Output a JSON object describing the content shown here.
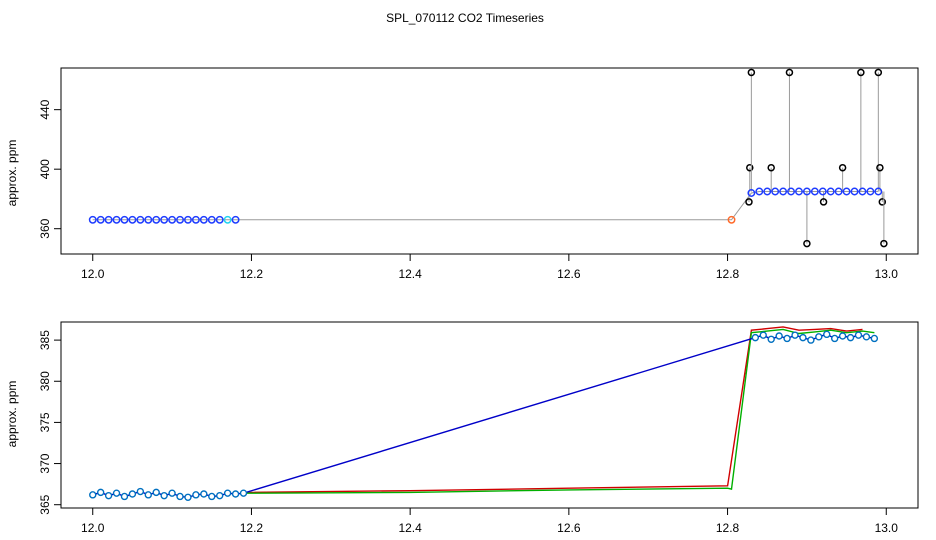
{
  "title": "SPL_070112  CO2 Timeseries",
  "chart_data": [
    {
      "type": "line",
      "panel": "top",
      "title": "",
      "xlabel": "",
      "ylabel": "approx. ppm",
      "xlim": [
        11.96,
        13.04
      ],
      "ylim": [
        343,
        468
      ],
      "x_ticks": [
        "12.0",
        "12.2",
        "12.4",
        "12.6",
        "12.8",
        "13.0"
      ],
      "y_ticks": [
        "360",
        "400",
        "440"
      ],
      "grid": false,
      "legend": "none",
      "colors": {
        "trace": "#9a9a9a",
        "points": "#1e3cff",
        "accent": "#ff6a2a",
        "cyan": "#22d3ee",
        "outlier": "#000000"
      },
      "series": [
        {
          "x": [
            12.0,
            12.01,
            12.02,
            12.03,
            12.04,
            12.05,
            12.06,
            12.07,
            12.08,
            12.09,
            12.1,
            12.11,
            12.12,
            12.13,
            12.14,
            12.15,
            12.16,
            12.17,
            12.18,
            12.805,
            12.83,
            12.84,
            12.85,
            12.86,
            12.87,
            12.88,
            12.89,
            12.9,
            12.91,
            12.92,
            12.93,
            12.94,
            12.95,
            12.96,
            12.97,
            12.98,
            12.99
          ],
          "values": [
            366,
            366,
            366,
            366,
            366,
            366,
            366,
            366,
            366,
            366,
            366,
            366,
            366,
            366,
            366,
            366,
            366,
            366,
            366,
            366,
            384,
            385,
            385,
            385,
            385,
            385,
            385,
            385,
            385,
            385,
            385,
            385,
            385,
            385,
            385,
            385,
            385
          ]
        }
      ],
      "outliers": {
        "x": [
          12.827,
          12.828,
          12.83,
          12.855,
          12.878,
          12.9,
          12.921,
          12.945,
          12.968,
          12.99,
          12.992,
          12.995,
          12.997
        ],
        "values": [
          378,
          401,
          465,
          401,
          465,
          350,
          378,
          401,
          465,
          465,
          401,
          378,
          350
        ]
      }
    },
    {
      "type": "line",
      "panel": "bottom",
      "title": "",
      "xlabel": "",
      "ylabel": "approx. ppm",
      "xlim": [
        11.96,
        13.04
      ],
      "ylim": [
        364.6,
        387.2
      ],
      "x_ticks": [
        "12.0",
        "12.2",
        "12.4",
        "12.6",
        "12.8",
        "13.0"
      ],
      "y_ticks": [
        "365",
        "370",
        "375",
        "380",
        "385"
      ],
      "grid": false,
      "legend": "none",
      "colors": {
        "blue": "#0000c8",
        "green": "#00b000",
        "red": "#d00000",
        "marker_fill": "#ffffff"
      },
      "series": [
        {
          "x": [
            12.0,
            12.01,
            12.02,
            12.03,
            12.04,
            12.05,
            12.06,
            12.07,
            12.08,
            12.09,
            12.1,
            12.11,
            12.12,
            12.13,
            12.14,
            12.15,
            12.16,
            12.17,
            12.18,
            12.19,
            12.835,
            12.845,
            12.855,
            12.865,
            12.875,
            12.885,
            12.895,
            12.905,
            12.915,
            12.925,
            12.935,
            12.945,
            12.955,
            12.965,
            12.975,
            12.985
          ],
          "values": [
            366.2,
            366.5,
            366.1,
            366.4,
            366.0,
            366.3,
            366.6,
            366.2,
            366.5,
            366.1,
            366.4,
            366.0,
            365.9,
            366.2,
            366.3,
            366.0,
            366.1,
            366.4,
            366.3,
            366.4,
            385.3,
            385.6,
            385.1,
            385.5,
            385.2,
            385.6,
            385.3,
            385.0,
            385.4,
            385.7,
            385.2,
            385.5,
            385.3,
            385.6,
            385.4,
            385.2
          ]
        },
        {
          "x": [
            12.19,
            12.4,
            12.6,
            12.8,
            12.805,
            12.83,
            12.85,
            12.87,
            12.89,
            12.91,
            12.93,
            12.95,
            12.97,
            12.985
          ],
          "values": [
            366.4,
            366.5,
            366.8,
            367.0,
            366.9,
            385.9,
            386.1,
            386.3,
            385.8,
            386.0,
            386.2,
            385.9,
            386.1,
            385.9
          ]
        },
        {
          "x": [
            12.19,
            12.4,
            12.6,
            12.8,
            12.83,
            12.85,
            12.87,
            12.89,
            12.91,
            12.93,
            12.95,
            12.97
          ],
          "values": [
            366.5,
            366.7,
            367.0,
            367.3,
            386.2,
            386.4,
            386.6,
            386.2,
            386.3,
            386.4,
            386.1,
            386.3
          ]
        }
      ]
    }
  ]
}
